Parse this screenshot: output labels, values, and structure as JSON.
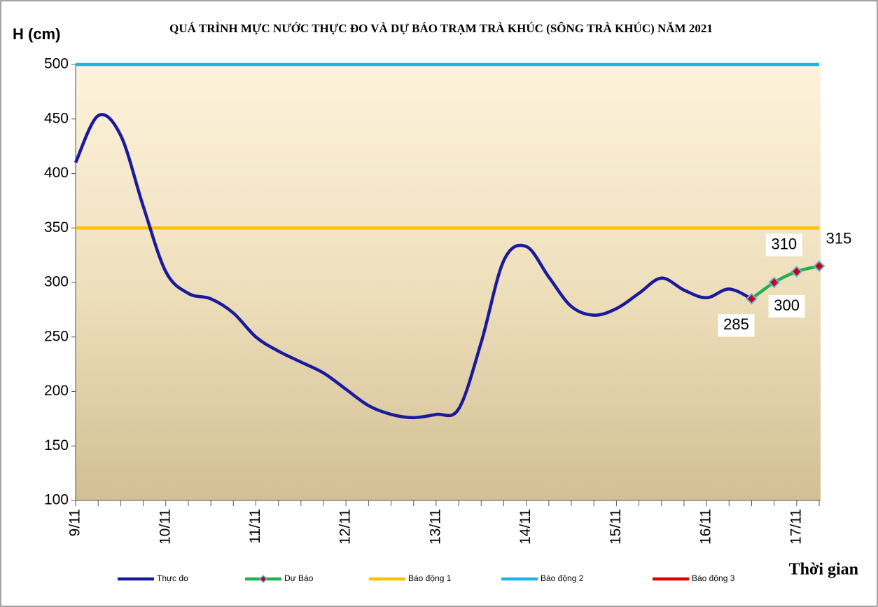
{
  "chart_data": {
    "type": "line",
    "title": "QUÁ TRÌNH MỰC NƯỚC THỰC ĐO VÀ DỰ BÁO TRẠM TRÀ KHÚC (SÔNG TRÀ KHÚC) NĂM  2021",
    "y_label": "H (cm)",
    "x_label": "Thời gian",
    "categories": [
      "9/11",
      null,
      null,
      null,
      "10/11",
      null,
      null,
      null,
      "11/11",
      null,
      null,
      null,
      "12/11",
      null,
      null,
      null,
      "13/11",
      null,
      null,
      null,
      "14/11",
      null,
      null,
      null,
      "15/11",
      null,
      null,
      null,
      "16/11",
      null,
      null,
      null,
      "17/11",
      null
    ],
    "series": [
      {
        "name": "Thực đo",
        "color": "#1a1a9c",
        "smooth": true,
        "values": [
          410,
          453,
          435,
          370,
          310,
          290,
          285,
          272,
          250,
          237,
          227,
          217,
          202,
          187,
          179,
          176,
          179,
          184,
          245,
          320,
          333,
          305,
          278,
          270,
          276,
          290,
          304,
          293,
          286,
          294,
          285,
          null,
          null,
          null
        ]
      },
      {
        "name": "Dự Báo",
        "color": "#22b14c",
        "smooth": true,
        "markers": true,
        "data_labels": true,
        "values": [
          null,
          null,
          null,
          null,
          null,
          null,
          null,
          null,
          null,
          null,
          null,
          null,
          null,
          null,
          null,
          null,
          null,
          null,
          null,
          null,
          null,
          null,
          null,
          null,
          null,
          null,
          null,
          null,
          null,
          null,
          285,
          300,
          310,
          315
        ]
      },
      {
        "name": "Báo động 1",
        "color": "#ffc000",
        "values": [
          350,
          350,
          350,
          350,
          350,
          350,
          350,
          350,
          350,
          350,
          350,
          350,
          350,
          350,
          350,
          350,
          350,
          350,
          350,
          350,
          350,
          350,
          350,
          350,
          350,
          350,
          350,
          350,
          350,
          350,
          350,
          350,
          350,
          350
        ]
      },
      {
        "name": "Báo động 2",
        "color": "#1fb5e8",
        "values": [
          500,
          500,
          500,
          500,
          500,
          500,
          500,
          500,
          500,
          500,
          500,
          500,
          500,
          500,
          500,
          500,
          500,
          500,
          500,
          500,
          500,
          500,
          500,
          500,
          500,
          500,
          500,
          500,
          500,
          500,
          500,
          500,
          500,
          500
        ]
      },
      {
        "name": "Báo động 3",
        "color": "#e00000",
        "values": [
          null,
          null,
          null,
          null,
          null,
          null,
          null,
          null,
          null,
          null,
          null,
          null,
          null,
          null,
          null,
          null,
          null,
          null,
          null,
          null,
          null,
          null,
          null,
          null,
          null,
          null,
          null,
          null,
          null,
          null,
          null,
          null,
          null,
          null
        ]
      }
    ],
    "ylim": [
      100,
      500
    ],
    "yticks": [
      100,
      150,
      200,
      250,
      300,
      350,
      400,
      450,
      500
    ],
    "legend": "bottom"
  }
}
